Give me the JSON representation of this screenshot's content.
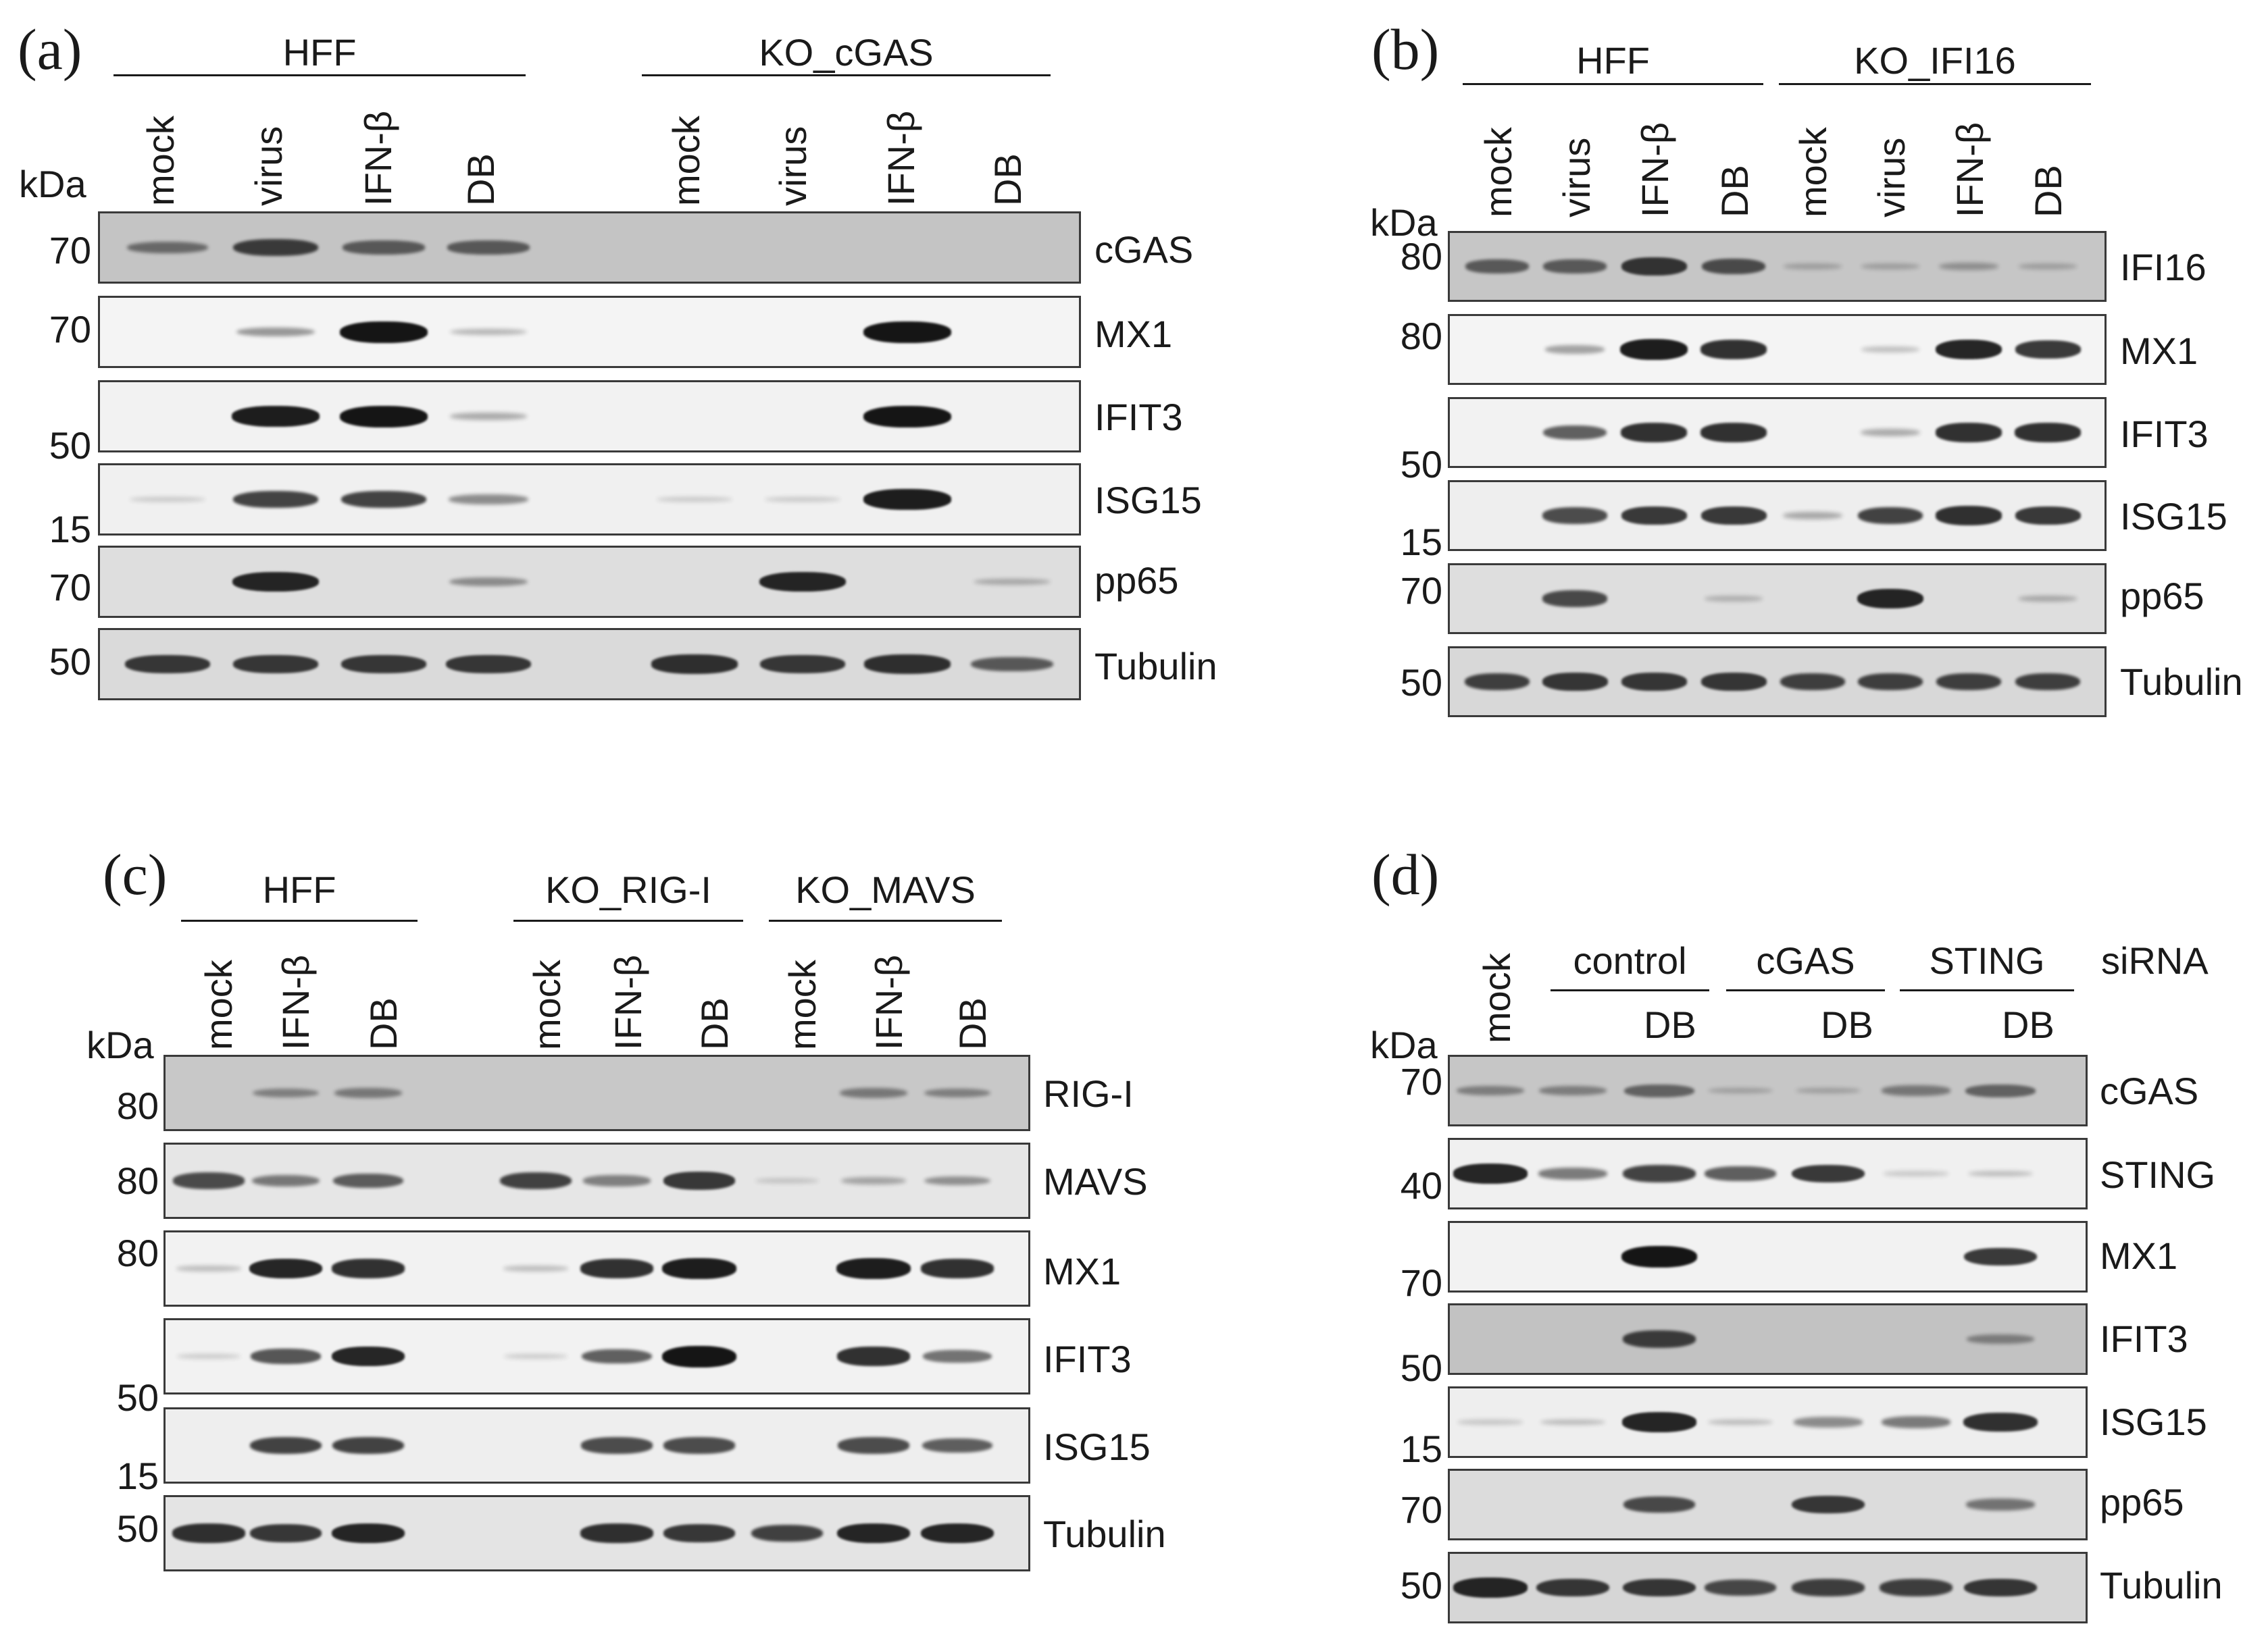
{
  "colors": {
    "band": "#151515",
    "membrane_light": "#f2f2f2",
    "membrane_mid": "#dcdcdc",
    "membrane_dark": "#b9b9b9",
    "border": "#3a3a3a"
  },
  "units": {
    "kda": "kDa"
  },
  "panels": {
    "a": {
      "label": "(a)",
      "groups": [
        "HFF",
        "KO_cGAS"
      ],
      "lanes": [
        "mock",
        "virus",
        "IFN-β",
        "DB",
        "mock",
        "virus",
        "IFN-β",
        "DB"
      ],
      "blots": [
        {
          "protein": "cGAS",
          "mw": "70",
          "levels": [
            0.45,
            0.75,
            0.55,
            0.55,
            0,
            0,
            0,
            0
          ]
        },
        {
          "protein": "MX1",
          "mw": "70",
          "levels": [
            0,
            0.3,
            1.0,
            0.15,
            0,
            0,
            1.0,
            0
          ]
        },
        {
          "protein": "IFIT3",
          "mw": "50",
          "levels": [
            0,
            0.95,
            1.0,
            0.2,
            0,
            0,
            1.0,
            0
          ]
        },
        {
          "protein": "ISG15",
          "mw": "15",
          "levels": [
            0.05,
            0.75,
            0.75,
            0.35,
            0.05,
            0.05,
            0.95,
            0
          ]
        },
        {
          "protein": "pp65",
          "mw": "70",
          "levels": [
            0,
            0.9,
            0,
            0.3,
            0,
            0.9,
            0,
            0.15
          ]
        },
        {
          "protein": "Tubulin",
          "mw": "50",
          "levels": [
            0.8,
            0.8,
            0.8,
            0.8,
            0.85,
            0.8,
            0.85,
            0.6
          ]
        }
      ]
    },
    "b": {
      "label": "(b)",
      "groups": [
        "HFF",
        "KO_IFI16"
      ],
      "lanes": [
        "mock",
        "virus",
        "IFN-β",
        "DB",
        "mock",
        "virus",
        "IFN-β",
        "DB"
      ],
      "blots": [
        {
          "protein": "IFI16",
          "mw": "80",
          "levels": [
            0.55,
            0.55,
            0.8,
            0.65,
            0.1,
            0.1,
            0.2,
            0.1
          ]
        },
        {
          "protein": "MX1",
          "mw": "80",
          "levels": [
            0,
            0.25,
            0.95,
            0.85,
            0,
            0.1,
            0.9,
            0.8
          ]
        },
        {
          "protein": "IFIT3",
          "mw": "50",
          "levels": [
            0,
            0.6,
            0.85,
            0.85,
            0,
            0.2,
            0.85,
            0.85
          ]
        },
        {
          "protein": "ISG15",
          "mw": "15",
          "levels": [
            0,
            0.7,
            0.8,
            0.8,
            0.2,
            0.75,
            0.85,
            0.8
          ]
        },
        {
          "protein": "pp65",
          "mw": "70",
          "levels": [
            0,
            0.7,
            0,
            0.1,
            0,
            0.9,
            0,
            0.15
          ]
        },
        {
          "protein": "Tubulin",
          "mw": "50",
          "levels": [
            0.75,
            0.8,
            0.8,
            0.8,
            0.75,
            0.75,
            0.75,
            0.75
          ]
        }
      ]
    },
    "c": {
      "label": "(c)",
      "groups": [
        "HFF",
        "KO_RIG-I",
        "KO_MAVS"
      ],
      "lanes": [
        "mock",
        "IFN-β",
        "DB",
        "mock",
        "IFN-β",
        "DB",
        "mock",
        "IFN-β",
        "DB"
      ],
      "blots": [
        {
          "protein": "RIG-I",
          "mw": "80",
          "levels": [
            0,
            0.3,
            0.35,
            0,
            0,
            0,
            0,
            0.35,
            0.3
          ]
        },
        {
          "protein": "MAVS",
          "mw": "80",
          "levels": [
            0.7,
            0.45,
            0.6,
            0.75,
            0.4,
            0.8,
            0.05,
            0.2,
            0.3
          ]
        },
        {
          "protein": "MX1",
          "mw": "80",
          "levels": [
            0.1,
            0.9,
            0.85,
            0.1,
            0.85,
            0.95,
            0,
            0.95,
            0.85
          ]
        },
        {
          "protein": "IFIT3",
          "mw": "50",
          "levels": [
            0.05,
            0.65,
            0.9,
            0.05,
            0.6,
            1.0,
            0,
            0.85,
            0.5
          ]
        },
        {
          "protein": "ISG15",
          "mw": "15",
          "levels": [
            0,
            0.75,
            0.75,
            0,
            0.7,
            0.7,
            0,
            0.7,
            0.6
          ]
        },
        {
          "protein": "Tubulin",
          "mw": "50",
          "levels": [
            0.85,
            0.8,
            0.9,
            0,
            0.85,
            0.8,
            0.75,
            0.9,
            0.9
          ]
        }
      ]
    },
    "d": {
      "label": "(d)",
      "lane_mock": "mock",
      "groups": [
        "control",
        "cGAS",
        "STING"
      ],
      "sirna": "siRNA",
      "lanes": [
        "",
        "",
        "DB",
        "",
        "DB",
        "",
        "DB"
      ],
      "blots": [
        {
          "protein": "cGAS",
          "mw": "70",
          "levels": [
            0.3,
            0.3,
            0.5,
            0.1,
            0.1,
            0.35,
            0.5
          ]
        },
        {
          "protein": "STING",
          "mw": "40",
          "levels": [
            0.9,
            0.45,
            0.75,
            0.6,
            0.8,
            0.05,
            0.1
          ]
        },
        {
          "protein": "MX1",
          "mw": "70",
          "levels": [
            0,
            0,
            1.0,
            0,
            0,
            0,
            0.8
          ]
        },
        {
          "protein": "IFIT3",
          "mw": "50",
          "levels": [
            0,
            0,
            0.75,
            0,
            0,
            0,
            0.3
          ]
        },
        {
          "protein": "ISG15",
          "mw": "15",
          "levels": [
            0.05,
            0.1,
            0.9,
            0.1,
            0.35,
            0.45,
            0.85
          ]
        },
        {
          "protein": "pp65",
          "mw": "70",
          "levels": [
            0,
            0,
            0.7,
            0,
            0.8,
            0,
            0.45
          ]
        },
        {
          "protein": "Tubulin",
          "mw": "50",
          "levels": [
            0.9,
            0.8,
            0.8,
            0.7,
            0.75,
            0.75,
            0.8
          ]
        }
      ]
    }
  }
}
